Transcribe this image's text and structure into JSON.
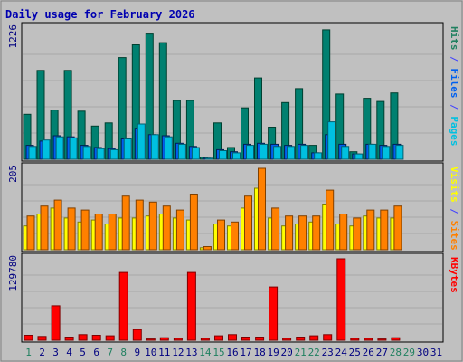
{
  "title": "Daily usage for February 2026",
  "panels": {
    "top": {
      "max_label": "1226",
      "right_labels": [
        {
          "text": "Pages",
          "color": "#00c0e0"
        },
        {
          "text": " / ",
          "color": "#4040ff"
        },
        {
          "text": "Files",
          "color": "#0060f0"
        },
        {
          "text": " / ",
          "color": "#4040ff"
        },
        {
          "text": "Hits",
          "color": "#208060"
        }
      ]
    },
    "middle": {
      "max_label": "205",
      "right_labels": [
        {
          "text": "Sites",
          "color": "#ff8000"
        },
        {
          "text": " / ",
          "color": "#4040ff"
        },
        {
          "text": "Visits",
          "color": "#ffff00"
        }
      ]
    },
    "bottom": {
      "max_label": "129780",
      "right_labels": [
        {
          "text": "KBytes",
          "color": "#ff0000"
        }
      ]
    }
  },
  "colors": {
    "background": "#c0c0c0",
    "title": "#0000b0",
    "axis_text": "#000080",
    "weekend_day": "#208060",
    "weekday_day": "#000080",
    "hits": "#008070",
    "files": "#0060f0",
    "pages": "#00c0e0",
    "visits": "#ffff00",
    "sites": "#ff8000",
    "kbytes": "#ff0000"
  },
  "chart_data": {
    "type": "bar",
    "title": "Daily usage for February 2026",
    "categories": [
      "1",
      "2",
      "3",
      "4",
      "5",
      "6",
      "7",
      "8",
      "9",
      "10",
      "11",
      "12",
      "13",
      "14",
      "15",
      "16",
      "17",
      "18",
      "19",
      "20",
      "21",
      "22",
      "23",
      "24",
      "25",
      "26",
      "27",
      "28",
      "29",
      "30",
      "31"
    ],
    "weekend_days": [
      1,
      7,
      8,
      14,
      15,
      21,
      22,
      28,
      29
    ],
    "panels": [
      {
        "name": "Hits / Files / Pages",
        "ymax": 1226,
        "series": [
          {
            "name": "Hits",
            "values": [
              420,
              830,
              460,
              830,
              450,
              310,
              340,
              950,
              1070,
              1170,
              1090,
              550,
              550,
              20,
              340,
              110,
              480,
              760,
              300,
              530,
              660,
              130,
              1210,
              610,
              70,
              570,
              540,
              620,
              0,
              0,
              0
            ]
          },
          {
            "name": "Files",
            "values": [
              130,
              170,
              220,
              210,
              130,
              110,
              100,
              190,
              290,
              230,
              220,
              150,
              120,
              10,
              90,
              70,
              140,
              150,
              140,
              130,
              140,
              60,
              230,
              140,
              50,
              140,
              130,
              140,
              0,
              0,
              0
            ]
          },
          {
            "name": "Pages",
            "values": [
              120,
              180,
              210,
              200,
              120,
              100,
              90,
              190,
              330,
              230,
              210,
              140,
              110,
              10,
              80,
              60,
              130,
              140,
              120,
              120,
              130,
              60,
              350,
              120,
              50,
              140,
              120,
              130,
              0,
              0,
              0
            ]
          }
        ]
      },
      {
        "name": "Visits / Sites",
        "ymax": 205,
        "series": [
          {
            "name": "Visits",
            "values": [
              60,
              90,
              105,
              80,
              70,
              75,
              65,
              80,
              80,
              85,
              90,
              80,
              75,
              5,
              65,
              60,
              105,
              155,
              80,
              60,
              65,
              70,
              115,
              65,
              60,
              85,
              80,
              80,
              0,
              0,
              0
            ]
          },
          {
            "name": "Sites",
            "values": [
              85,
              110,
              125,
              105,
              100,
              90,
              90,
              135,
              125,
              120,
              110,
              100,
              140,
              8,
              75,
              70,
              135,
              205,
              105,
              85,
              85,
              85,
              150,
              90,
              80,
              100,
              100,
              110,
              0,
              0,
              0
            ]
          }
        ]
      },
      {
        "name": "KBytes",
        "ymax": 129780,
        "series": [
          {
            "name": "KBytes",
            "values": [
              8000,
              6000,
              55000,
              5000,
              9000,
              8000,
              7000,
              108000,
              17000,
              2000,
              4000,
              3000,
              108000,
              3000,
              7000,
              9000,
              5000,
              5000,
              85000,
              3000,
              5000,
              7000,
              9000,
              129780,
              3000,
              3000,
              2000,
              4000,
              0,
              0,
              0
            ]
          }
        ]
      }
    ]
  }
}
